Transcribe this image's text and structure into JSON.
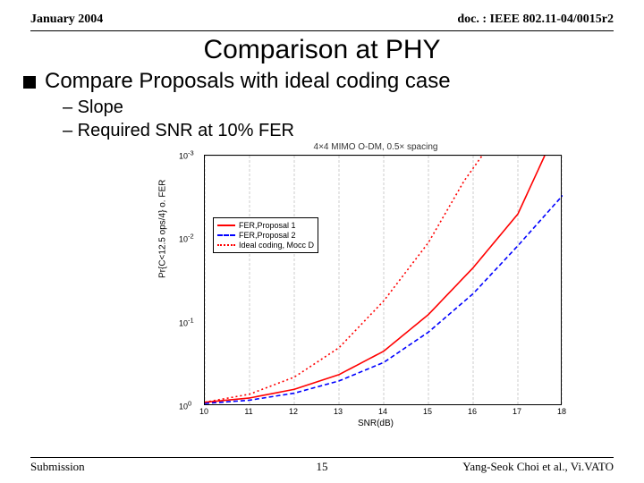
{
  "header": {
    "left": "January 2004",
    "right": "doc. : IEEE 802.11-04/0015r2"
  },
  "title": "Comparison at PHY",
  "main_bullet": "Compare Proposals with ideal coding case",
  "sub_bullets": [
    "– Slope",
    "– Required SNR at 10% FER"
  ],
  "chart": {
    "type": "line",
    "title_text": "4×4 MIMO O-DM, 0.5× spacing",
    "xlabel": "SNR(dB)",
    "ylabel": "Pr{C<12.5 ops/4} o. FER",
    "xlim": [
      10,
      18
    ],
    "ylim_exp": [
      -3,
      0
    ],
    "xticks": [
      10,
      11,
      12,
      13,
      14,
      15,
      16,
      17,
      18
    ],
    "ytick_exp": [
      0,
      -1,
      -2,
      -3
    ],
    "grid_color": "#999999",
    "minor_grid_color": "#bbbbbb",
    "background_color": "#ffffff",
    "series": [
      {
        "name": "FER,Proposal 1",
        "color": "#ff0000",
        "dash": "4 0",
        "points": [
          [
            10,
            0.9
          ],
          [
            11,
            0.8
          ],
          [
            12,
            0.63
          ],
          [
            13,
            0.42
          ],
          [
            14,
            0.22
          ],
          [
            15,
            0.08
          ],
          [
            16,
            0.022
          ],
          [
            17,
            0.005
          ],
          [
            17.6,
            0.001
          ]
        ]
      },
      {
        "name": "FER,Proposal 2",
        "color": "#0000ff",
        "dash": "5 3",
        "points": [
          [
            10,
            0.93
          ],
          [
            11,
            0.85
          ],
          [
            12,
            0.7
          ],
          [
            13,
            0.5
          ],
          [
            14,
            0.3
          ],
          [
            15,
            0.13
          ],
          [
            16,
            0.045
          ],
          [
            17,
            0.012
          ],
          [
            18,
            0.003
          ]
        ]
      },
      {
        "name": "Ideal coding, Mocc D",
        "color": "#ff0000",
        "dash": "2 3",
        "points": [
          [
            10,
            0.9
          ],
          [
            11,
            0.72
          ],
          [
            12,
            0.45
          ],
          [
            13,
            0.2
          ],
          [
            14,
            0.055
          ],
          [
            15,
            0.011
          ],
          [
            15.8,
            0.002
          ],
          [
            16.2,
            0.001
          ]
        ]
      }
    ],
    "legend_position": "upper-left"
  },
  "footer": {
    "left": "Submission",
    "page": "15",
    "right": "Yang-Seok Choi et al., Vi.VATO"
  }
}
